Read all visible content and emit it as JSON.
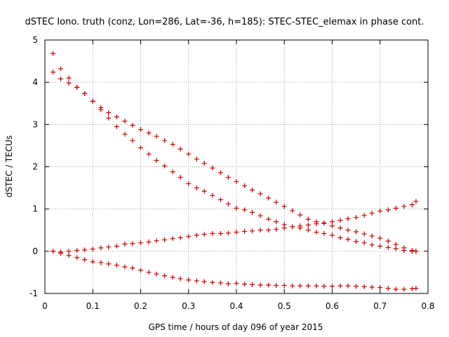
{
  "chart_data": {
    "type": "scatter",
    "title": "dSTEC Iono. truth (conz, Lon=286, Lat=-36, h=185): STEC-STEC_elemax in phase cont.",
    "xlabel": "GPS time / hours of day 096 of year 2015",
    "ylabel": "dSTEC  / TECUs",
    "xlim": [
      0,
      0.8
    ],
    "ylim": [
      -1,
      5
    ],
    "xticks": [
      "0",
      "0.1",
      "0.2",
      "0.3",
      "0.4",
      "0.5",
      "0.6",
      "0.7",
      "0.8"
    ],
    "yticks": [
      "-1",
      "0",
      "1",
      "2",
      "3",
      "4",
      "5"
    ],
    "grid": true,
    "marker": "+",
    "colors": {
      "points": "#cc0000",
      "grid": "#a0a0a0",
      "axes": "#000000"
    },
    "series": [
      {
        "x": [
          0.017,
          0.033,
          0.05,
          0.067,
          0.083,
          0.1,
          0.117,
          0.133,
          0.15,
          0.167,
          0.183,
          0.2,
          0.217,
          0.233,
          0.25,
          0.267,
          0.283,
          0.3,
          0.317,
          0.333,
          0.35,
          0.367,
          0.383,
          0.4,
          0.417,
          0.433,
          0.45,
          0.467,
          0.483,
          0.5,
          0.517,
          0.533,
          0.55,
          0.567,
          0.583,
          0.6,
          0.617,
          0.633,
          0.65,
          0.667,
          0.683,
          0.7,
          0.717,
          0.733,
          0.75,
          0.767,
          0.775
        ],
        "values": [
          4.68,
          4.32,
          4.1,
          3.88,
          3.73,
          3.55,
          3.4,
          3.28,
          3.18,
          3.08,
          2.98,
          2.88,
          2.8,
          2.72,
          2.62,
          2.53,
          2.42,
          2.3,
          2.18,
          2.08,
          1.97,
          1.86,
          1.75,
          1.65,
          1.55,
          1.45,
          1.36,
          1.26,
          1.16,
          1.06,
          0.96,
          0.86,
          0.76,
          0.7,
          0.66,
          0.6,
          0.55,
          0.5,
          0.46,
          0.41,
          0.36,
          0.31,
          0.24,
          0.16,
          0.08,
          0.02,
          0.0
        ]
      },
      {
        "x": [
          0.017,
          0.033,
          0.05,
          0.067,
          0.083,
          0.1,
          0.117,
          0.133,
          0.15,
          0.167,
          0.183,
          0.2,
          0.217,
          0.233,
          0.25,
          0.267,
          0.283,
          0.3,
          0.317,
          0.333,
          0.35,
          0.367,
          0.383,
          0.4,
          0.417,
          0.433,
          0.45,
          0.467,
          0.483,
          0.5,
          0.517,
          0.533,
          0.55,
          0.567,
          0.583,
          0.6,
          0.617,
          0.633,
          0.65,
          0.667,
          0.683,
          0.7,
          0.717,
          0.733,
          0.75,
          0.767,
          0.775
        ],
        "values": [
          4.24,
          4.08,
          3.98,
          3.88,
          3.73,
          3.55,
          3.35,
          3.15,
          2.95,
          2.77,
          2.62,
          2.45,
          2.3,
          2.15,
          2.02,
          1.88,
          1.75,
          1.6,
          1.5,
          1.42,
          1.32,
          1.22,
          1.12,
          1.02,
          0.98,
          0.92,
          0.84,
          0.76,
          0.7,
          0.63,
          0.58,
          0.55,
          0.5,
          0.45,
          0.42,
          0.38,
          0.32,
          0.28,
          0.23,
          0.2,
          0.15,
          0.12,
          0.09,
          0.06,
          0.02,
          0.0,
          0.0
        ]
      },
      {
        "x": [
          0.017,
          0.033,
          0.05,
          0.067,
          0.083,
          0.1,
          0.117,
          0.133,
          0.15,
          0.167,
          0.183,
          0.2,
          0.217,
          0.233,
          0.25,
          0.267,
          0.283,
          0.3,
          0.317,
          0.333,
          0.35,
          0.367,
          0.383,
          0.4,
          0.417,
          0.433,
          0.45,
          0.467,
          0.483,
          0.5,
          0.517,
          0.533,
          0.55,
          0.567,
          0.583,
          0.6,
          0.617,
          0.633,
          0.65,
          0.667,
          0.683,
          0.7,
          0.717,
          0.733,
          0.75,
          0.767,
          0.775
        ],
        "values": [
          0.0,
          -0.02,
          0.0,
          0.02,
          0.03,
          0.05,
          0.08,
          0.1,
          0.12,
          0.17,
          0.18,
          0.2,
          0.22,
          0.25,
          0.27,
          0.3,
          0.32,
          0.35,
          0.38,
          0.4,
          0.42,
          0.42,
          0.43,
          0.45,
          0.47,
          0.48,
          0.5,
          0.5,
          0.52,
          0.55,
          0.58,
          0.6,
          0.62,
          0.65,
          0.67,
          0.7,
          0.73,
          0.77,
          0.8,
          0.85,
          0.9,
          0.95,
          0.98,
          1.02,
          1.06,
          1.1,
          1.18
        ]
      },
      {
        "x": [
          0.017,
          0.033,
          0.05,
          0.067,
          0.083,
          0.1,
          0.117,
          0.133,
          0.15,
          0.167,
          0.183,
          0.2,
          0.217,
          0.233,
          0.25,
          0.267,
          0.283,
          0.3,
          0.317,
          0.333,
          0.35,
          0.367,
          0.383,
          0.4,
          0.417,
          0.433,
          0.45,
          0.467,
          0.483,
          0.5,
          0.517,
          0.533,
          0.55,
          0.567,
          0.583,
          0.6,
          0.617,
          0.633,
          0.65,
          0.667,
          0.683,
          0.7,
          0.717,
          0.733,
          0.75,
          0.767,
          0.775
        ],
        "values": [
          0.0,
          -0.05,
          -0.1,
          -0.15,
          -0.2,
          -0.25,
          -0.27,
          -0.3,
          -0.33,
          -0.37,
          -0.4,
          -0.45,
          -0.5,
          -0.54,
          -0.58,
          -0.62,
          -0.65,
          -0.68,
          -0.7,
          -0.72,
          -0.74,
          -0.75,
          -0.77,
          -0.76,
          -0.78,
          -0.79,
          -0.8,
          -0.8,
          -0.81,
          -0.81,
          -0.82,
          -0.82,
          -0.82,
          -0.82,
          -0.83,
          -0.83,
          -0.82,
          -0.82,
          -0.83,
          -0.84,
          -0.85,
          -0.86,
          -0.88,
          -0.9,
          -0.9,
          -0.89,
          -0.88
        ]
      }
    ]
  }
}
